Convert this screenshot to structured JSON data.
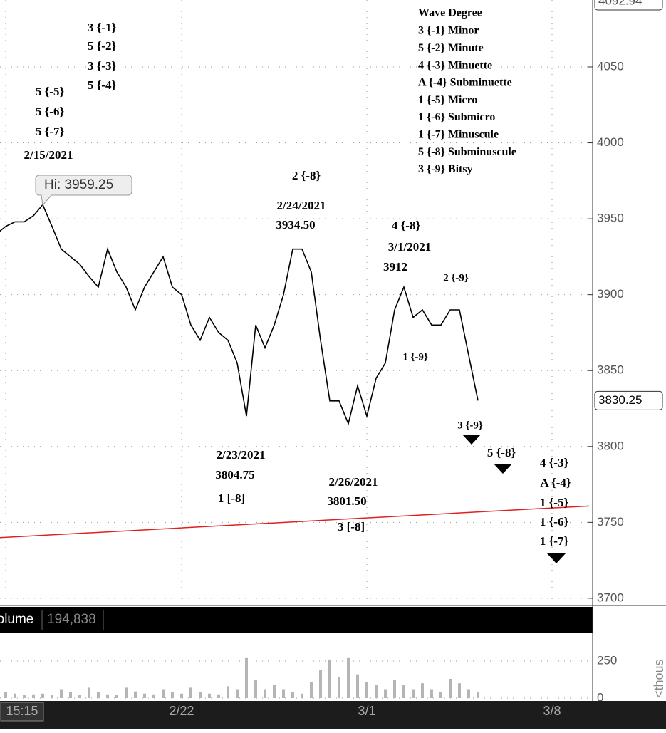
{
  "chart_data": {
    "type": "line",
    "categories": [
      null,
      "15:15",
      null,
      null,
      null,
      null,
      null,
      null,
      null,
      null,
      null,
      null,
      null,
      null,
      null,
      null,
      null,
      null,
      null,
      null,
      "2/22",
      null,
      null,
      null,
      null,
      null,
      null,
      null,
      null,
      null,
      null,
      null,
      null,
      null,
      null,
      null,
      null,
      null,
      null,
      null,
      "3/1",
      null,
      null,
      null,
      null,
      null,
      null,
      null,
      null,
      null,
      null,
      null,
      null,
      null,
      null,
      null,
      null,
      null,
      null,
      null,
      "3/8",
      null,
      null,
      null,
      null
    ],
    "series": [
      {
        "color": "#000000",
        "values": [
          3940,
          3945,
          3948,
          3948,
          3952,
          3959.25,
          3945,
          3930,
          3925,
          3920,
          3912,
          3905,
          3930,
          3915,
          3905,
          3890,
          3905,
          3915,
          3925,
          3905,
          3900,
          3880,
          3870,
          3885,
          3875,
          3870,
          3855,
          3820,
          3880,
          3865,
          3880,
          3900,
          3930,
          3930,
          3915,
          3870,
          3830,
          3830,
          3815,
          3840,
          3820,
          3845,
          3855,
          3890,
          3905,
          3885,
          3890,
          3880,
          3880,
          3890,
          3890,
          3860,
          3830.25,
          null,
          null,
          null,
          null,
          null,
          null,
          null,
          null,
          null,
          null,
          null,
          null
        ]
      }
    ],
    "ylim": [
      3696.2,
      4094.1
    ],
    "yticks": [
      3700,
      3750,
      3800,
      3850,
      3900,
      3950,
      4000,
      4050
    ],
    "grid": true,
    "top_price_label": 4092.94,
    "high_callout": "Hi: 3959.25",
    "trend_line": {
      "color": "#e02020",
      "values": [
        3739.8,
        3760.8
      ]
    },
    "annotations": [
      "3 {-1}",
      "5 {-2}",
      "3 {-3}",
      "5 {-4}",
      "5 {-5}",
      "5 {-6}",
      "5 {-7}",
      "2/15/2021",
      "2 {-8}",
      "2/24/2021",
      "3934.50",
      "4 {-8}",
      "3/1/2021",
      "3912",
      "2 {-9}",
      "1 {-9}",
      "3 {-9}",
      "5 {-8}",
      "4 {-3}",
      "A {-4}",
      "1 {-5}",
      "1 {-6}",
      "1 {-7}",
      "2/23/2021",
      "3804.75",
      "1 [-8]",
      "2/26/2021",
      "3801.50",
      "3 [-8]"
    ],
    "legend_title": "Wave Degree",
    "legend_items": [
      "3 {-1} Minor",
      "5 {-2} Minute",
      "4 {-3} Minuette",
      "A {-4} Subminuette",
      "1 {-5} Micro",
      "1 {-6} Submicro",
      "1 {-7} Minuscule",
      "5 {-8} Subminuscule",
      "3 {-9} Bitsy"
    ],
    "volume": {
      "label": "Volume",
      "last": "194,838",
      "unit": "<thous",
      "color": "#b5b5b5",
      "ylim": [
        0,
        442
      ],
      "yticks": [
        0,
        250
      ],
      "values": [
        20,
        40,
        30,
        20,
        25,
        30,
        20,
        60,
        40,
        20,
        70,
        40,
        25,
        20,
        70,
        45,
        30,
        25,
        60,
        40,
        30,
        70,
        40,
        30,
        25,
        80,
        60,
        270,
        120,
        60,
        90,
        60,
        40,
        30,
        110,
        190,
        260,
        140,
        270,
        160,
        110,
        90,
        60,
        120,
        90,
        60,
        100,
        60,
        40,
        130,
        100,
        60,
        40,
        null,
        null,
        null,
        null,
        null,
        null,
        null,
        null,
        null,
        null,
        null,
        null
      ]
    }
  }
}
